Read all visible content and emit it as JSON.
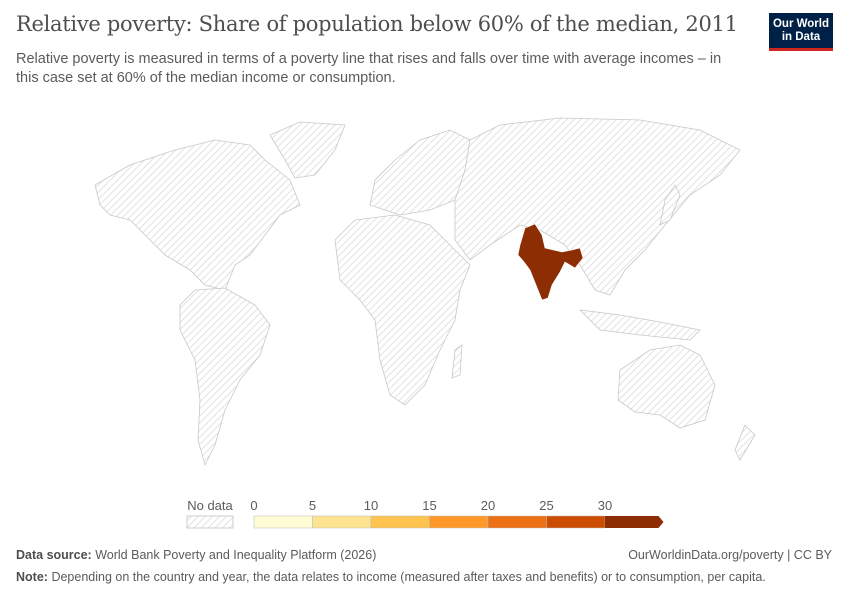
{
  "header": {
    "title": "Relative poverty: Share of population below 60% of the median, 2011",
    "subtitle": "Relative poverty is measured in terms of a poverty line that rises and falls over time with average incomes – in this case set at 60% of the median income or consumption.",
    "logo_text": "Our World in Data"
  },
  "map": {
    "year": "2011",
    "no_data_pattern": "diagonal-hatch",
    "countries_with_data": [
      {
        "name": "India",
        "bin": "30+",
        "color": "#8c2d04"
      }
    ]
  },
  "legend": {
    "no_data_label": "No data",
    "ticks": [
      "0",
      "5",
      "10",
      "15",
      "20",
      "25",
      "30"
    ],
    "colors": [
      "#fffcd5",
      "#fee391",
      "#fec44f",
      "#fe9929",
      "#ec7014",
      "#cc4c02",
      "#8c2d04"
    ]
  },
  "footer": {
    "source_label": "Data source:",
    "source_text": "World Bank Poverty and Inequality Platform (2026)",
    "license": "OurWorldinData.org/poverty | CC BY",
    "note_label": "Note:",
    "note_text": "Depending on the country and year, the data relates to income (measured after taxes and benefits) or to consumption, per capita."
  }
}
